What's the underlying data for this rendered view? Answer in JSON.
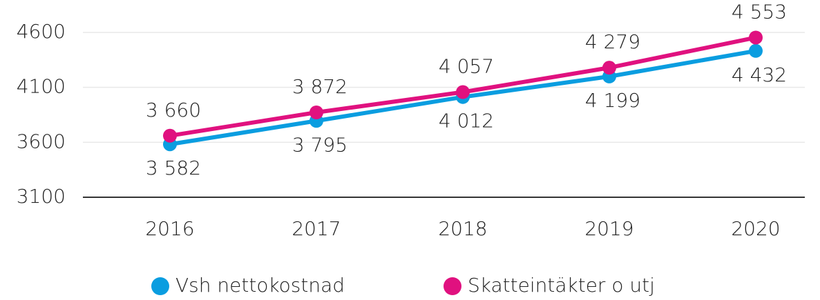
{
  "chart_data": {
    "type": "line",
    "categories": [
      "2016",
      "2017",
      "2018",
      "2019",
      "2020"
    ],
    "series": [
      {
        "name": "Vsh nettokostnad",
        "color": "#0a9de0",
        "values": [
          3582,
          3795,
          4012,
          4199,
          4432
        ],
        "value_labels": [
          "3 582",
          "3 795",
          "4 012",
          "4 199",
          "4 432"
        ]
      },
      {
        "name": "Skatteintäkter o utj",
        "color": "#e0117f",
        "values": [
          3660,
          3872,
          4057,
          4279,
          4553
        ],
        "value_labels": [
          "3 660",
          "3 872",
          "4 057",
          "4 279",
          "4 553"
        ]
      }
    ],
    "ylim": [
      3100,
      4600
    ],
    "yticks": [
      3100,
      3600,
      4100,
      4600
    ],
    "grid": true,
    "legend": "bottom"
  }
}
